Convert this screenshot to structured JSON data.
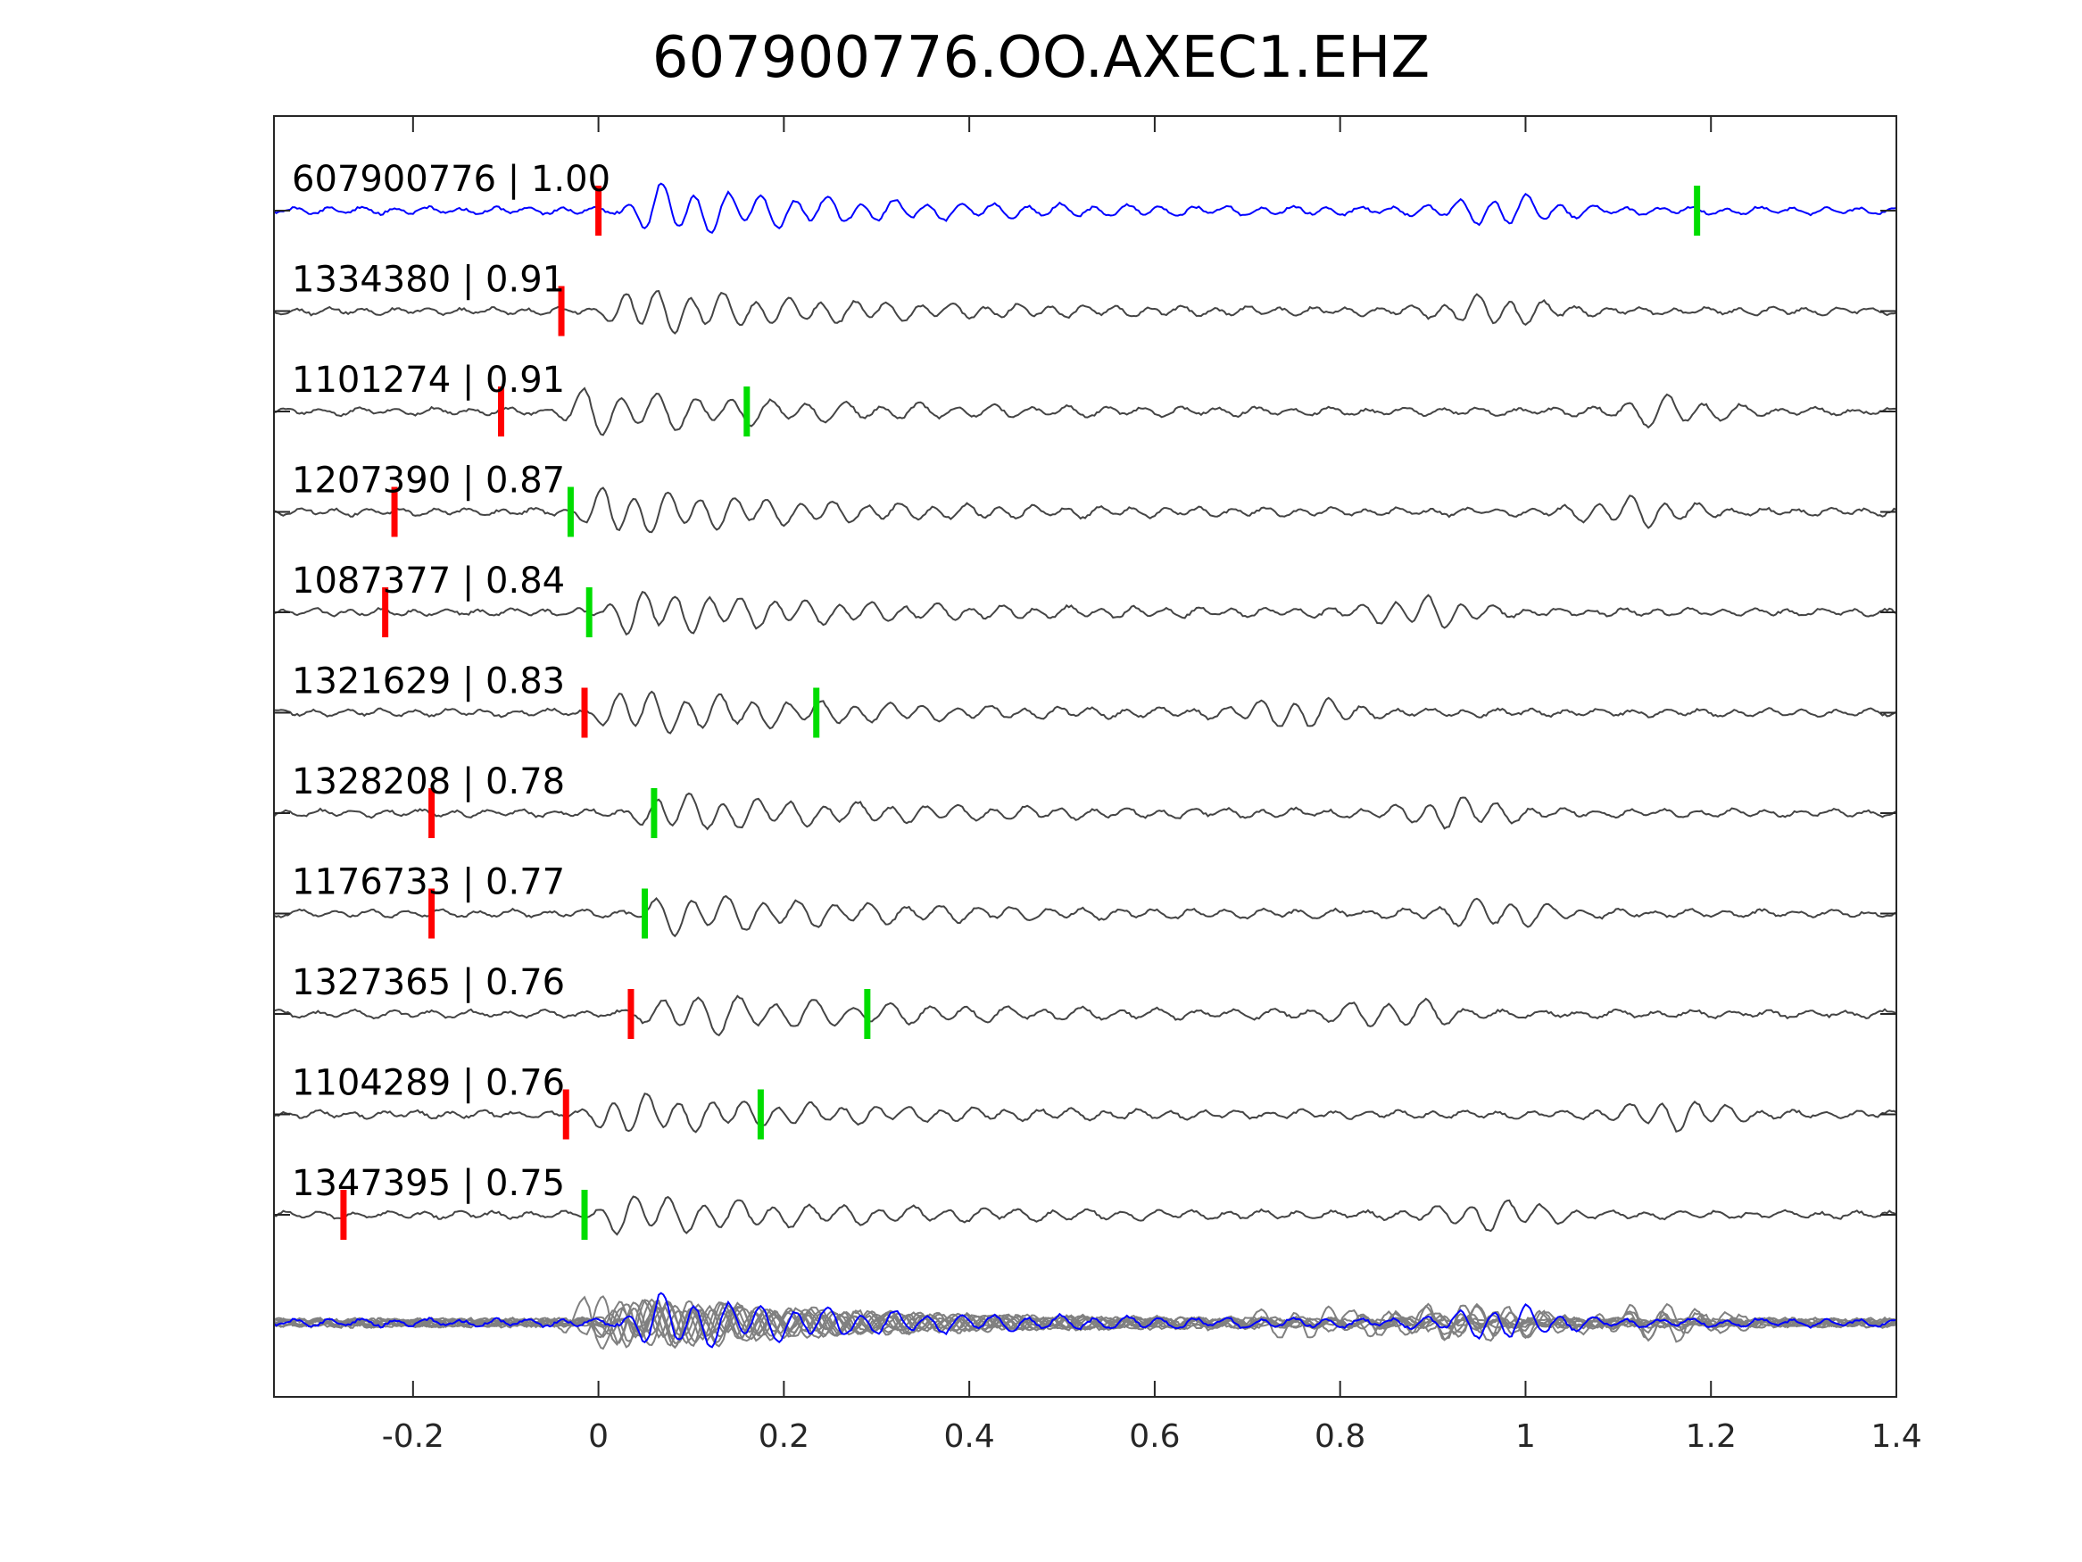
{
  "chart_data": {
    "type": "line",
    "title": "607900776.OO.AXEC1.EHZ",
    "xlabel": "",
    "ylabel": "",
    "xlim": [
      -0.35,
      1.4
    ],
    "x_ticks": [
      -0.2,
      0,
      0.2,
      0.4,
      0.6,
      0.8,
      1,
      1.2,
      1.4
    ],
    "x_tick_labels": [
      "-0.2",
      "0",
      "0.2",
      "0.4",
      "0.6",
      "0.8",
      "1",
      "1.2",
      "1.4"
    ],
    "grid": false,
    "colors": {
      "reference": "#0000ff",
      "match": "#444444",
      "stack": "#808080",
      "p_pick": "#ff0000",
      "s_pick": "#00dd00"
    },
    "traces": [
      {
        "label": "607900776 | 1.00",
        "id": "607900776",
        "cc": 1.0,
        "color": "reference",
        "p_pick": 0.0,
        "s_pick": 1.185,
        "onset": 0.02,
        "amplitude": 1.0
      },
      {
        "label": "1334380 | 0.91",
        "id": "1334380",
        "cc": 0.91,
        "color": "match",
        "p_pick": -0.04,
        "s_pick": null,
        "onset": 0.0,
        "amplitude": 0.9
      },
      {
        "label": "1101274 | 0.91",
        "id": "1101274",
        "cc": 0.91,
        "color": "match",
        "p_pick": -0.105,
        "s_pick": 0.16,
        "onset": -0.05,
        "amplitude": 0.9
      },
      {
        "label": "1207390 | 0.87",
        "id": "1207390",
        "cc": 0.87,
        "color": "match",
        "p_pick": -0.22,
        "s_pick": -0.03,
        "onset": -0.03,
        "amplitude": 0.95
      },
      {
        "label": "1087377 | 0.84",
        "id": "1087377",
        "cc": 0.84,
        "color": "match",
        "p_pick": -0.23,
        "s_pick": -0.01,
        "onset": 0.0,
        "amplitude": 0.9
      },
      {
        "label": "1321629 | 0.83",
        "id": "1321629",
        "cc": 0.83,
        "color": "match",
        "p_pick": -0.015,
        "s_pick": 0.235,
        "onset": -0.01,
        "amplitude": 0.9
      },
      {
        "label": "1328208 | 0.78",
        "id": "1328208",
        "cc": 0.78,
        "color": "match",
        "p_pick": -0.18,
        "s_pick": 0.06,
        "onset": 0.03,
        "amplitude": 0.75
      },
      {
        "label": "1176733 | 0.77",
        "id": "1176733",
        "cc": 0.77,
        "color": "match",
        "p_pick": -0.18,
        "s_pick": 0.05,
        "onset": 0.04,
        "amplitude": 0.8
      },
      {
        "label": "1327365 | 0.76",
        "id": "1327365",
        "cc": 0.76,
        "color": "match",
        "p_pick": 0.035,
        "s_pick": 0.29,
        "onset": 0.04,
        "amplitude": 0.85
      },
      {
        "label": "1104289 | 0.76",
        "id": "1104289",
        "cc": 0.76,
        "color": "match",
        "p_pick": -0.035,
        "s_pick": 0.175,
        "onset": -0.02,
        "amplitude": 0.8
      },
      {
        "label": "1347395 | 0.75",
        "id": "1347395",
        "cc": 0.75,
        "color": "match",
        "p_pick": -0.275,
        "s_pick": -0.015,
        "onset": -0.01,
        "amplitude": 0.8
      }
    ]
  }
}
